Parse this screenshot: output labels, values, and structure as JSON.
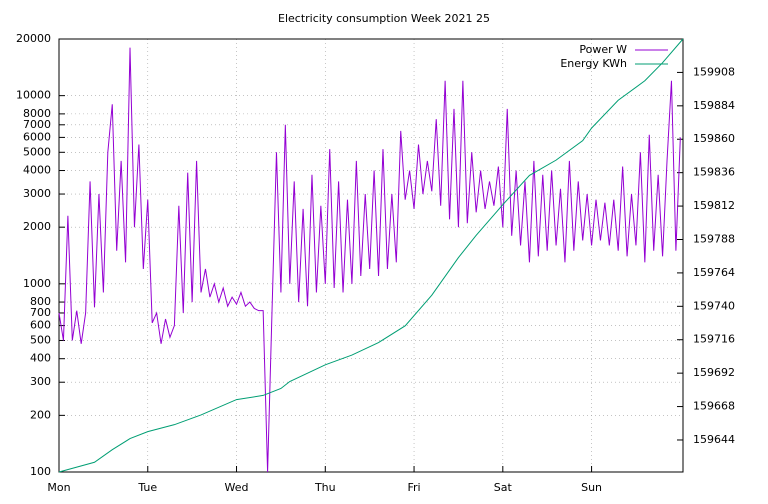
{
  "chart_data": {
    "type": "line",
    "title": "Electricity consumption Week 2021 25",
    "log_y": true,
    "grid": true,
    "legend": "top-right",
    "xlim": [
      0,
      7.03
    ],
    "xticks": [
      {
        "value": 0,
        "label": "Mon"
      },
      {
        "value": 1,
        "label": "Tue"
      },
      {
        "value": 2,
        "label": "Wed"
      },
      {
        "value": 3,
        "label": "Thu"
      },
      {
        "value": 4,
        "label": "Fri"
      },
      {
        "value": 5,
        "label": "Sat"
      },
      {
        "value": 6,
        "label": "Sun"
      }
    ],
    "ylim": [
      100,
      20000
    ],
    "yticks": [
      100,
      200,
      300,
      400,
      500,
      600,
      700,
      800,
      1000,
      2000,
      3000,
      4000,
      5000,
      6000,
      7000,
      8000,
      10000,
      20000
    ],
    "y2lim": [
      159621,
      159932
    ],
    "y2ticks": [
      159644,
      159668,
      159692,
      159716,
      159740,
      159764,
      159788,
      159812,
      159836,
      159860,
      159884,
      159908
    ],
    "series": [
      {
        "name": "Power W",
        "color": "#9400d3",
        "axis": "y",
        "x": [
          0,
          0.05,
          0.1,
          0.15,
          0.2,
          0.25,
          0.3,
          0.35,
          0.4,
          0.45,
          0.5,
          0.55,
          0.6,
          0.65,
          0.7,
          0.75,
          0.8,
          0.85,
          0.9,
          0.95,
          1,
          1.05,
          1.1,
          1.15,
          1.2,
          1.25,
          1.3,
          1.35,
          1.4,
          1.45,
          1.5,
          1.55,
          1.6,
          1.65,
          1.7,
          1.75,
          1.8,
          1.85,
          1.9,
          1.95,
          2,
          2.05,
          2.1,
          2.15,
          2.2,
          2.25,
          2.3,
          2.35,
          2.4,
          2.45,
          2.5,
          2.55,
          2.6,
          2.65,
          2.7,
          2.75,
          2.8,
          2.85,
          2.9,
          2.95,
          3,
          3.05,
          3.1,
          3.15,
          3.2,
          3.25,
          3.3,
          3.35,
          3.4,
          3.45,
          3.5,
          3.55,
          3.6,
          3.65,
          3.7,
          3.75,
          3.8,
          3.85,
          3.9,
          3.95,
          4,
          4.05,
          4.1,
          4.15,
          4.2,
          4.25,
          4.3,
          4.35,
          4.4,
          4.45,
          4.5,
          4.55,
          4.6,
          4.65,
          4.7,
          4.75,
          4.8,
          4.85,
          4.9,
          4.95,
          5,
          5.05,
          5.1,
          5.15,
          5.2,
          5.25,
          5.3,
          5.35,
          5.4,
          5.45,
          5.5,
          5.55,
          5.6,
          5.65,
          5.7,
          5.75,
          5.8,
          5.85,
          5.9,
          5.95,
          6,
          6.05,
          6.1,
          6.15,
          6.2,
          6.25,
          6.3,
          6.35,
          6.4,
          6.45,
          6.5,
          6.55,
          6.6,
          6.65,
          6.7,
          6.75,
          6.8,
          6.85,
          6.9,
          6.95,
          7
        ],
        "values": [
          700,
          500,
          2300,
          500,
          720,
          480,
          700,
          3500,
          750,
          3000,
          900,
          5000,
          9000,
          1500,
          4500,
          1300,
          18000,
          2000,
          5500,
          1200,
          2800,
          620,
          700,
          480,
          650,
          520,
          600,
          2600,
          700,
          3900,
          800,
          4500,
          900,
          1200,
          850,
          1000,
          800,
          950,
          760,
          850,
          780,
          900,
          760,
          800,
          740,
          720,
          720,
          100,
          720,
          5000,
          900,
          7000,
          1000,
          3500,
          800,
          2500,
          760,
          3800,
          900,
          2600,
          1000,
          5200,
          950,
          3500,
          900,
          2800,
          1000,
          4500,
          1100,
          3000,
          1200,
          4000,
          1100,
          5200,
          1200,
          3000,
          1300,
          6500,
          2800,
          4000,
          2500,
          5500,
          3000,
          4500,
          3100,
          7500,
          2600,
          12000,
          2200,
          8500,
          2000,
          12000,
          2100,
          5000,
          2400,
          4000,
          2500,
          3500,
          2600,
          4200,
          2000,
          8500,
          1800,
          4000,
          1600,
          3500,
          1300,
          4500,
          1400,
          3800,
          1500,
          4000,
          1600,
          3200,
          1300,
          4500,
          1500,
          3500,
          1700,
          3000,
          1600,
          2800,
          1700,
          2700,
          1600,
          2800,
          1500,
          4200,
          1400,
          3000,
          1600,
          5000,
          1300,
          6200,
          1500,
          3800,
          1400,
          4500,
          12000,
          1500,
          6000
        ]
      },
      {
        "name": "Energy KWh",
        "color": "#009e73",
        "axis": "y2",
        "x": [
          0,
          0.4,
          0.6,
          0.8,
          1,
          1.3,
          1.6,
          2,
          2.3,
          2.5,
          2.6,
          3,
          3.3,
          3.6,
          3.9,
          4.2,
          4.5,
          4.7,
          5,
          5.3,
          5.6,
          5.9,
          6,
          6.3,
          6.6,
          6.8,
          7.03
        ],
        "values": [
          159621,
          159628,
          159637,
          159645,
          159650,
          159655,
          159662,
          159673,
          159676,
          159681,
          159686,
          159698,
          159705,
          159714,
          159726,
          159748,
          159775,
          159791,
          159813,
          159834,
          159845,
          159859,
          159868,
          159888,
          159902,
          159915,
          159932
        ]
      }
    ]
  }
}
